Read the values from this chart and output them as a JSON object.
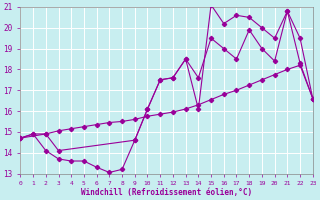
{
  "xlabel": "Windchill (Refroidissement éolien,°C)",
  "xlim": [
    0,
    23
  ],
  "ylim": [
    13,
    21
  ],
  "xticks": [
    0,
    1,
    2,
    3,
    4,
    5,
    6,
    7,
    8,
    9,
    10,
    11,
    12,
    13,
    14,
    15,
    16,
    17,
    18,
    19,
    20,
    21,
    22,
    23
  ],
  "yticks": [
    13,
    14,
    15,
    16,
    17,
    18,
    19,
    20,
    21
  ],
  "background_color": "#c8eef0",
  "line_color": "#990099",
  "grid_color": "#aadddd",
  "line1_x": [
    0,
    1,
    2,
    3,
    4,
    5,
    6,
    7,
    8,
    9,
    10,
    11,
    12,
    13,
    14,
    15,
    16,
    17,
    18,
    19,
    20,
    21,
    22,
    23
  ],
  "line1_y": [
    14.7,
    14.9,
    14.1,
    13.7,
    13.6,
    13.6,
    13.3,
    13.05,
    13.2,
    14.6,
    16.1,
    17.5,
    17.6,
    18.5,
    16.1,
    21.1,
    20.2,
    20.6,
    20.5,
    20.0,
    19.5,
    20.8,
    18.3,
    16.6
  ],
  "line2_x": [
    0,
    1,
    2,
    3,
    4,
    5,
    6,
    7,
    8,
    9,
    10,
    11,
    12,
    13,
    14,
    15,
    16,
    17,
    18,
    19,
    20,
    21,
    22,
    23
  ],
  "line2_y": [
    14.7,
    14.9,
    14.9,
    15.05,
    15.15,
    15.25,
    15.35,
    15.45,
    15.5,
    15.6,
    15.75,
    15.85,
    15.95,
    16.1,
    16.3,
    16.55,
    16.8,
    17.0,
    17.25,
    17.5,
    17.75,
    18.0,
    18.2,
    16.6
  ],
  "line3_x": [
    0,
    2,
    3,
    9,
    10,
    11,
    12,
    13,
    14,
    15,
    16,
    17,
    18,
    19,
    20,
    21,
    22,
    23
  ],
  "line3_y": [
    14.7,
    14.9,
    14.1,
    14.6,
    16.1,
    17.5,
    17.6,
    18.5,
    17.6,
    19.5,
    19.0,
    18.5,
    19.9,
    19.0,
    18.4,
    20.8,
    19.5,
    16.6
  ]
}
